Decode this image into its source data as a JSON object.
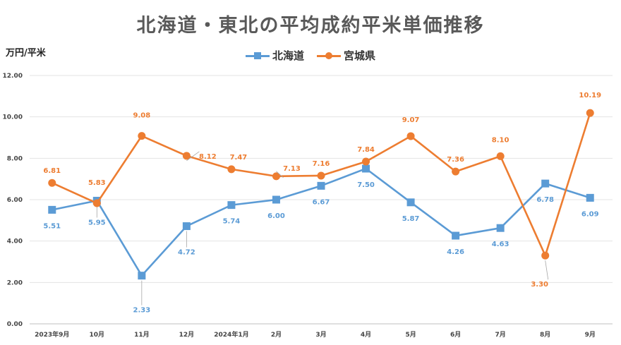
{
  "chart_data": {
    "type": "line",
    "title": "北海道・東北の平均成約平米単価推移",
    "ylabel": "万円/平米",
    "xlabel": "",
    "categories": [
      "2023年9月",
      "10月",
      "11月",
      "12月",
      "2024年1月",
      "2月",
      "3月",
      "4月",
      "5月",
      "6月",
      "7月",
      "8月",
      "9月"
    ],
    "ylim": [
      0,
      12
    ],
    "yticks": [
      "0.00",
      "2.00",
      "4.00",
      "6.00",
      "8.00",
      "10.00",
      "12.00"
    ],
    "grid": true,
    "legend_position": "top",
    "series": [
      {
        "name": "北海道",
        "color": "#5B9BD5",
        "marker": "square",
        "values": [
          5.51,
          5.95,
          2.33,
          4.72,
          5.74,
          6.0,
          6.67,
          7.5,
          5.87,
          4.26,
          4.63,
          6.78,
          6.09
        ],
        "labels": [
          "5.51",
          "5.95",
          "2.33",
          "4.72",
          "5.74",
          "6.00",
          "6.67",
          "7.50",
          "5.87",
          "4.26",
          "4.63",
          "6.78",
          "6.09"
        ]
      },
      {
        "name": "宮城県",
        "color": "#ED7D31",
        "marker": "circle",
        "values": [
          6.81,
          5.83,
          9.08,
          8.12,
          7.47,
          7.13,
          7.16,
          7.84,
          9.07,
          7.36,
          8.1,
          3.3,
          10.19
        ],
        "labels": [
          "6.81",
          "5.83",
          "9.08",
          "8.12",
          "7.47",
          "7.13",
          "7.16",
          "7.84",
          "9.07",
          "7.36",
          "8.10",
          "3.30",
          "10.19"
        ]
      }
    ]
  }
}
